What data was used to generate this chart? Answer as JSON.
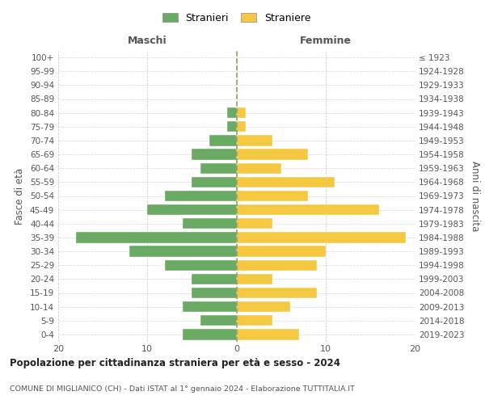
{
  "age_groups": [
    "0-4",
    "5-9",
    "10-14",
    "15-19",
    "20-24",
    "25-29",
    "30-34",
    "35-39",
    "40-44",
    "45-49",
    "50-54",
    "55-59",
    "60-64",
    "65-69",
    "70-74",
    "75-79",
    "80-84",
    "85-89",
    "90-94",
    "95-99",
    "100+"
  ],
  "birth_years": [
    "2019-2023",
    "2014-2018",
    "2009-2013",
    "2004-2008",
    "1999-2003",
    "1994-1998",
    "1989-1993",
    "1984-1988",
    "1979-1983",
    "1974-1978",
    "1969-1973",
    "1964-1968",
    "1959-1963",
    "1954-1958",
    "1949-1953",
    "1944-1948",
    "1939-1943",
    "1934-1938",
    "1929-1933",
    "1924-1928",
    "≤ 1923"
  ],
  "males": [
    6,
    4,
    6,
    5,
    5,
    8,
    12,
    18,
    6,
    10,
    8,
    5,
    4,
    5,
    3,
    1,
    1,
    0,
    0,
    0,
    0
  ],
  "females": [
    7,
    4,
    6,
    9,
    4,
    9,
    10,
    19,
    4,
    16,
    8,
    11,
    5,
    8,
    4,
    1,
    1,
    0,
    0,
    0,
    0
  ],
  "male_color": "#6aaa64",
  "female_color": "#f5c842",
  "background_color": "#ffffff",
  "grid_color": "#cccccc",
  "title": "Popolazione per cittadinanza straniera per età e sesso - 2024",
  "subtitle": "COMUNE DI MIGLIANICO (CH) - Dati ISTAT al 1° gennaio 2024 - Elaborazione TUTTITALIA.IT",
  "xlabel_left": "Maschi",
  "xlabel_right": "Femmine",
  "ylabel_left": "Fasce di età",
  "ylabel_right": "Anni di nascita",
  "legend_males": "Stranieri",
  "legend_females": "Straniere",
  "xlim": 20
}
